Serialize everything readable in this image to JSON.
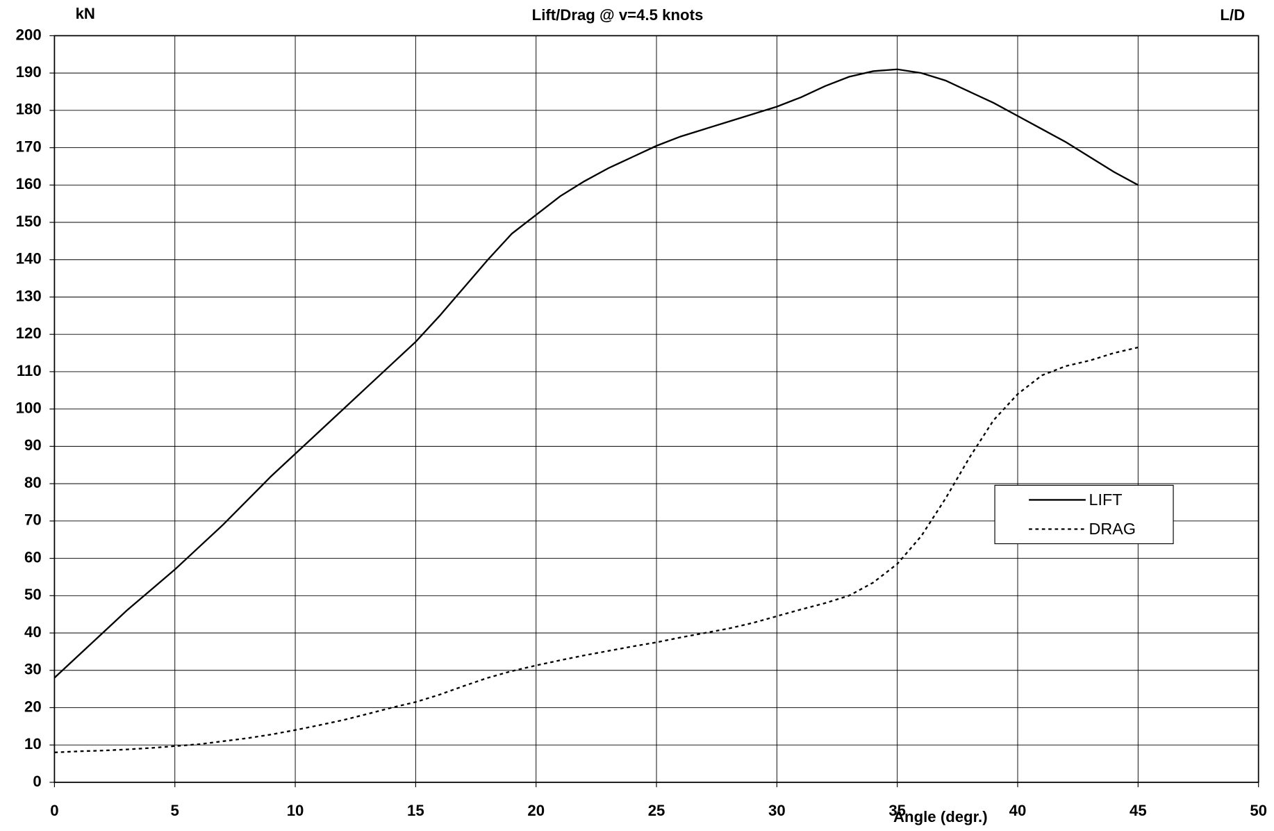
{
  "chart_data": {
    "type": "line",
    "title": "Lift/Drag @ v=4.5 knots",
    "ylabel": "kN",
    "y2label": "L/D",
    "xlabel": "Angle (degr.)",
    "x": [
      0,
      1,
      2,
      3,
      4,
      5,
      6,
      7,
      8,
      9,
      10,
      11,
      12,
      13,
      14,
      15,
      16,
      17,
      18,
      19,
      20,
      21,
      22,
      23,
      24,
      25,
      26,
      27,
      28,
      29,
      30,
      31,
      32,
      33,
      34,
      35,
      36,
      37,
      38,
      39,
      40,
      41,
      42,
      43,
      44,
      45
    ],
    "series": [
      {
        "name": "LIFT",
        "color": "#000000",
        "linestyle": "solid",
        "values": [
          28,
          34,
          40,
          46,
          51.5,
          57,
          63,
          69,
          75.5,
          82,
          88,
          94,
          100,
          106,
          112,
          118,
          125,
          132.5,
          140,
          147,
          152,
          157,
          161,
          164.5,
          167.5,
          170.5,
          173,
          175,
          177,
          179,
          181,
          183.5,
          186.5,
          189,
          190.5,
          191,
          190,
          188,
          185,
          182,
          178.5,
          175,
          171.5,
          167.5,
          163.5,
          160
        ]
      },
      {
        "name": "DRAG",
        "color": "#000000",
        "linestyle": "dotted",
        "values": [
          8,
          8.3,
          8.5,
          8.8,
          9.2,
          9.7,
          10.2,
          11,
          11.8,
          12.8,
          14,
          15.3,
          16.7,
          18.3,
          20,
          21.5,
          23.5,
          25.8,
          28,
          29.8,
          31.3,
          32.7,
          34,
          35.2,
          36.4,
          37.5,
          38.8,
          40,
          41.2,
          42.7,
          44.5,
          46.3,
          48,
          50,
          53.5,
          58.5,
          66,
          76,
          87,
          97,
          104,
          109,
          111.5,
          113,
          115,
          116.5
        ]
      }
    ],
    "xlim": [
      0,
      50
    ],
    "xticks": [
      0,
      5,
      10,
      15,
      20,
      25,
      30,
      35,
      40,
      45,
      50
    ],
    "ylim": [
      0,
      200
    ],
    "yticks": [
      0,
      10,
      20,
      30,
      40,
      50,
      60,
      70,
      80,
      90,
      100,
      110,
      120,
      130,
      140,
      150,
      160,
      170,
      180,
      190,
      200
    ],
    "grid": true,
    "legend": "right"
  }
}
